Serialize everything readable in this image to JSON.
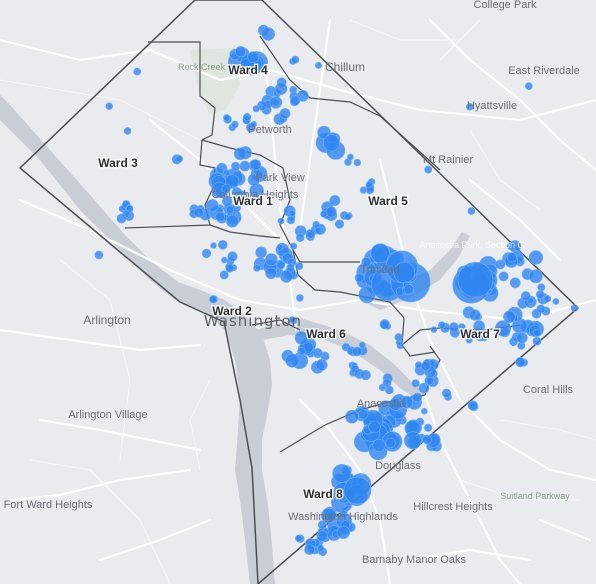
{
  "map": {
    "place_labels": [
      {
        "id": "college-park",
        "text": "College Park"
      },
      {
        "id": "chillum",
        "text": "Chillum"
      },
      {
        "id": "east-riverdale",
        "text": "East Riverdale"
      },
      {
        "id": "hyattsville",
        "text": "Hyattsville"
      },
      {
        "id": "mt-rainier",
        "text": "Mt Rainier"
      },
      {
        "id": "petworth",
        "text": "Petworth"
      },
      {
        "id": "park-view",
        "text": "Park View"
      },
      {
        "id": "columbia-heights",
        "text": "Columbia Heights"
      },
      {
        "id": "trinidad",
        "text": "Trinidad"
      },
      {
        "id": "anacostia-park",
        "text": "Anacostia Park, Section G"
      },
      {
        "id": "arlington",
        "text": "Arlington"
      },
      {
        "id": "washington",
        "text": "Washington"
      },
      {
        "id": "coral-hills",
        "text": "Coral Hills"
      },
      {
        "id": "arlington-village",
        "text": "Arlington Village"
      },
      {
        "id": "anacostia",
        "text": "Anacostia"
      },
      {
        "id": "douglass",
        "text": "Douglass"
      },
      {
        "id": "fort-ward-heights",
        "text": "Fort Ward Heights"
      },
      {
        "id": "hillcrest-heights",
        "text": "Hillcrest Heights"
      },
      {
        "id": "suitland-parkway",
        "text": "Suitland Parkway"
      },
      {
        "id": "washington-highlands",
        "text": "Washington Highlands"
      },
      {
        "id": "barnaby-manor-oaks",
        "text": "Barnaby Manor Oaks"
      },
      {
        "id": "rock-creek-park",
        "text": "Rock Creek Park"
      }
    ],
    "ward_labels": [
      {
        "id": "ward-4",
        "text": "Ward 4"
      },
      {
        "id": "ward-3",
        "text": "Ward 3"
      },
      {
        "id": "ward-1",
        "text": "Ward 1"
      },
      {
        "id": "ward-5",
        "text": "Ward 5"
      },
      {
        "id": "ward-2",
        "text": "Ward 2"
      },
      {
        "id": "ward-6",
        "text": "Ward 6"
      },
      {
        "id": "ward-7",
        "text": "Ward 7"
      },
      {
        "id": "ward-8",
        "text": "Ward 8"
      }
    ],
    "colors": {
      "background": "#e9ebee",
      "water": "#c9ced6",
      "road": "#ffffff",
      "boundary": "#4b4f55",
      "point_fill": "#2f86f0",
      "point_stroke": "#6fb0ff"
    }
  }
}
